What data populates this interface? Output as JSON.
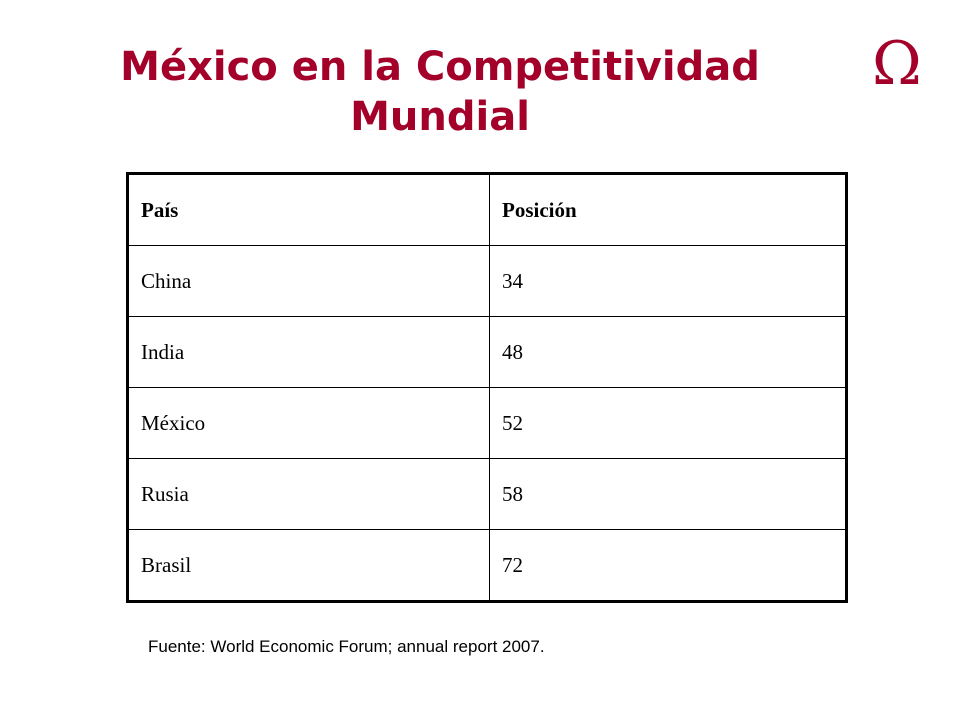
{
  "slide": {
    "title_line1": "México en la Competitividad",
    "title_line2": "Mundial",
    "logo_glyph": "Ω",
    "title_color": "#a3002a"
  },
  "table": {
    "headers": [
      "País",
      "Posición"
    ],
    "rows": [
      {
        "pais": "China",
        "posicion": "34"
      },
      {
        "pais": "India",
        "posicion": "48"
      },
      {
        "pais": "México",
        "posicion": "52"
      },
      {
        "pais": "Rusia",
        "posicion": "58"
      },
      {
        "pais": "Brasil",
        "posicion": "72"
      }
    ]
  },
  "footer": {
    "source": "Fuente: World Economic Forum; annual report 2007."
  }
}
